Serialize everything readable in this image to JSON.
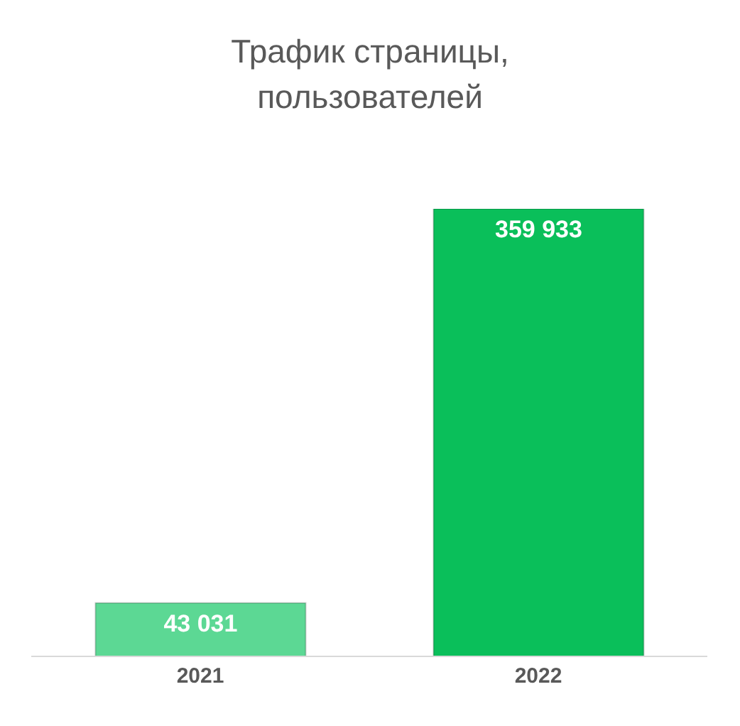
{
  "chart_data": {
    "type": "bar",
    "title": "Трафик страницы, пользователей",
    "categories": [
      "2021",
      "2022"
    ],
    "values": [
      43031,
      359933
    ],
    "colors": [
      "#5cd894",
      "#0abf5a"
    ],
    "value_labels": [
      "43 031",
      "359 933"
    ]
  }
}
